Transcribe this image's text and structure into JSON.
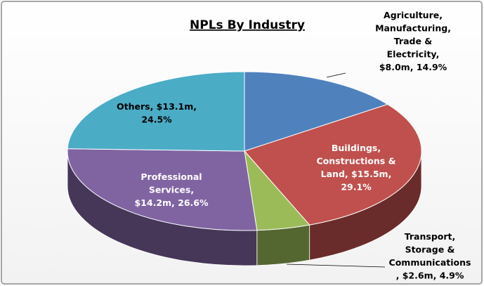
{
  "chart_data": {
    "type": "pie",
    "title": "NPLs By Industry",
    "categories": [
      "Agriculture, Manufacturing, Trade & Electricity",
      "Buildings, Constructions & Land",
      "Transport, Storage & Communications",
      "Professional Services",
      "Others"
    ],
    "values": [
      8.0,
      15.5,
      2.6,
      14.2,
      13.1
    ],
    "value_labels": [
      [
        "Agriculture,",
        "Manufacturing,",
        "Trade &",
        "Electricity,",
        "$8.0m, 14.9%"
      ],
      [
        "Buildings,",
        "Constructions &",
        "Land, $15.5m,",
        "29.1%"
      ],
      [
        "Transport,",
        "Storage &",
        "Communications",
        ", $2.6m, 4.9%"
      ],
      [
        "Professional",
        "Services,",
        "$14.2m, 26.6%"
      ],
      [
        "Others, $13.1m,",
        "24.5%"
      ]
    ],
    "colors": [
      "#4f81bd",
      "#c0504d",
      "#9bbb59",
      "#8064a2",
      "#4bacc6"
    ]
  }
}
